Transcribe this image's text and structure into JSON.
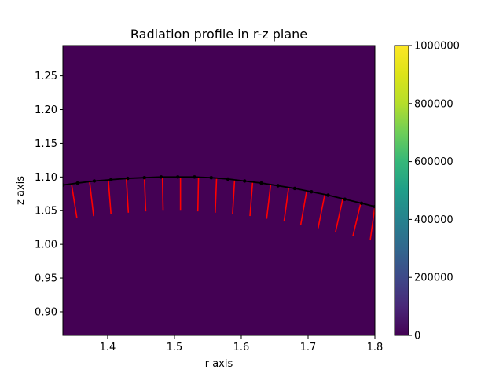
{
  "chart_data": {
    "type": "heatmap",
    "title": "Radiation profile in r-z plane",
    "xlabel": "r axis",
    "ylabel": "z axis",
    "xlim": [
      1.333,
      1.8
    ],
    "ylim": [
      0.865,
      1.295
    ],
    "x_ticks": [
      1.4,
      1.5,
      1.6,
      1.7,
      1.8
    ],
    "x_tick_labels": [
      "1.4",
      "1.5",
      "1.6",
      "1.7",
      "1.8"
    ],
    "y_ticks": [
      0.9,
      0.95,
      1.0,
      1.05,
      1.1,
      1.15,
      1.2,
      1.25
    ],
    "y_tick_labels": [
      "0.90",
      "0.95",
      "1.00",
      "1.05",
      "1.10",
      "1.15",
      "1.20",
      "1.25"
    ],
    "field_value": 0,
    "colormap": "viridis",
    "colorbar": {
      "min": 0,
      "max": 1000000,
      "ticks": [
        0,
        200000,
        400000,
        600000,
        800000,
        1000000
      ],
      "tick_labels": [
        "0",
        "200000",
        "400000",
        "600000",
        "800000",
        "1000000"
      ]
    },
    "boundary_curve": {
      "color": "#000000",
      "r": [
        1.333,
        1.355,
        1.38,
        1.405,
        1.43,
        1.455,
        1.48,
        1.505,
        1.53,
        1.555,
        1.58,
        1.605,
        1.63,
        1.655,
        1.68,
        1.705,
        1.73,
        1.755,
        1.78,
        1.8
      ],
      "z": [
        1.088,
        1.091,
        1.094,
        1.096,
        1.098,
        1.099,
        1.1,
        1.1,
        1.1,
        1.099,
        1.097,
        1.094,
        1.091,
        1.087,
        1.083,
        1.078,
        1.073,
        1.067,
        1.061,
        1.056
      ]
    },
    "rays": {
      "color": "#ff0000",
      "segments": [
        {
          "r0": 1.346,
          "z0": 1.089,
          "r1": 1.354,
          "z1": 1.039
        },
        {
          "r0": 1.373,
          "z0": 1.093,
          "r1": 1.379,
          "z1": 1.042
        },
        {
          "r0": 1.401,
          "z0": 1.096,
          "r1": 1.405,
          "z1": 1.045
        },
        {
          "r0": 1.428,
          "z0": 1.098,
          "r1": 1.431,
          "z1": 1.047
        },
        {
          "r0": 1.455,
          "z0": 1.099,
          "r1": 1.457,
          "z1": 1.049
        },
        {
          "r0": 1.482,
          "z0": 1.1,
          "r1": 1.483,
          "z1": 1.05
        },
        {
          "r0": 1.509,
          "z0": 1.1,
          "r1": 1.509,
          "z1": 1.05
        },
        {
          "r0": 1.536,
          "z0": 1.1,
          "r1": 1.535,
          "z1": 1.049
        },
        {
          "r0": 1.563,
          "z0": 1.098,
          "r1": 1.561,
          "z1": 1.047
        },
        {
          "r0": 1.59,
          "z0": 1.096,
          "r1": 1.587,
          "z1": 1.045
        },
        {
          "r0": 1.617,
          "z0": 1.093,
          "r1": 1.613,
          "z1": 1.042
        },
        {
          "r0": 1.644,
          "z0": 1.089,
          "r1": 1.638,
          "z1": 1.038
        },
        {
          "r0": 1.671,
          "z0": 1.085,
          "r1": 1.664,
          "z1": 1.034
        },
        {
          "r0": 1.698,
          "z0": 1.08,
          "r1": 1.689,
          "z1": 1.029
        },
        {
          "r0": 1.725,
          "z0": 1.074,
          "r1": 1.715,
          "z1": 1.024
        },
        {
          "r0": 1.752,
          "z0": 1.068,
          "r1": 1.741,
          "z1": 1.018
        },
        {
          "r0": 1.779,
          "z0": 1.062,
          "r1": 1.767,
          "z1": 1.012
        },
        {
          "r0": 1.8,
          "z0": 1.056,
          "r1": 1.793,
          "z1": 1.006
        }
      ]
    },
    "colors": {
      "field": "#440154",
      "frame": "#000000"
    },
    "grid": false
  }
}
